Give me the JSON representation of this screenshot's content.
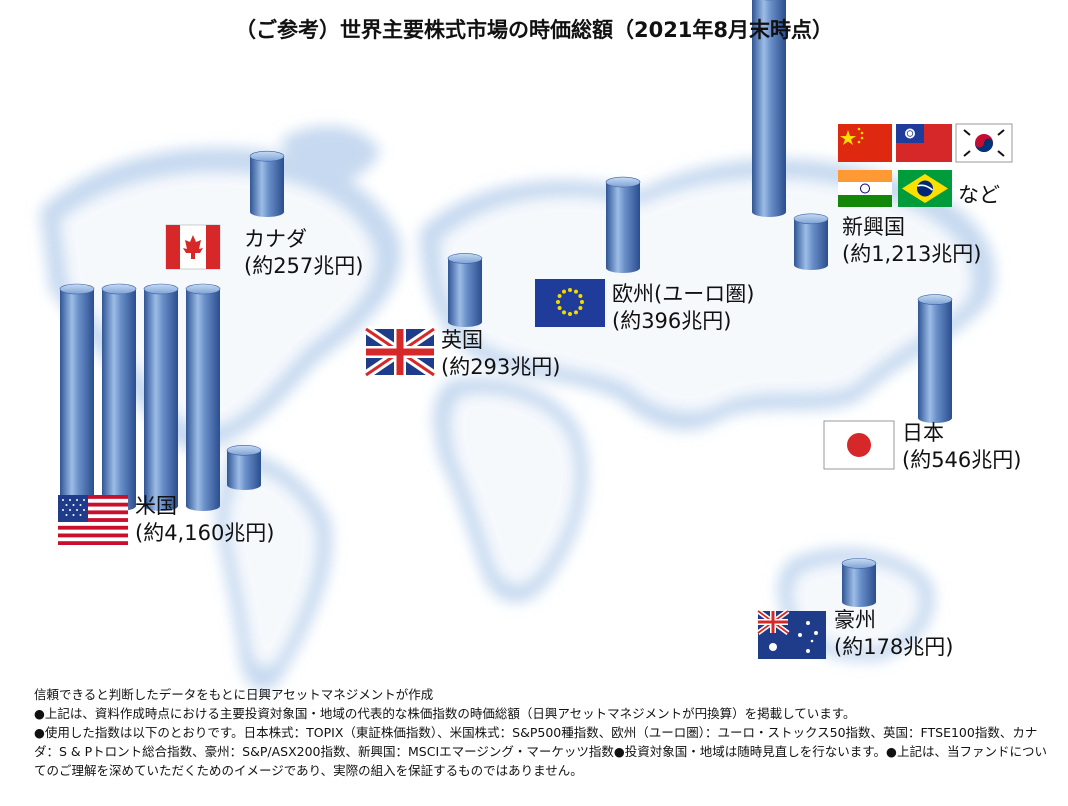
{
  "title": "（ご参考）世界主要株式市場の時価総額（2021年8月末時点）",
  "chart_data": {
    "type": "bar",
    "unit": "兆円",
    "categories": [
      "米国",
      "新興国",
      "日本",
      "欧州（ユーロ圏）",
      "英国",
      "カナダ",
      "豪州"
    ],
    "values": [
      4160,
      1213,
      546,
      396,
      293,
      257,
      178
    ],
    "labels": [
      "(約4,160兆円)",
      "(約1,213兆円)",
      "(約546兆円)",
      "(約396兆円)",
      "(約293兆円)",
      "(約257兆円)",
      "(約178兆円)"
    ]
  },
  "markets": {
    "us": {
      "name": "米国",
      "value": "(約4,160兆円)"
    },
    "canada": {
      "name": "カナダ",
      "value": "(約257兆円)"
    },
    "uk": {
      "name": "英国",
      "value": "(約293兆円)"
    },
    "euro": {
      "name": "欧州(ユーロ圏)",
      "value": "(約396兆円)"
    },
    "emerging": {
      "name": "新興国",
      "value": "(約1,213兆円)",
      "etc": "など"
    },
    "japan": {
      "name": "日本",
      "value": "(約546兆円)"
    },
    "australia": {
      "name": "豪州",
      "value": "(約178兆円)"
    }
  },
  "notes": [
    "信頼できると判断したデータをもとに日興アセットマネジメントが作成",
    "●上記は、資料作成時点における主要投資対象国・地域の代表的な株価指数の時価総額（日興アセットマネジメントが円換算）を掲載しています。",
    "●使用した指数は以下のとおりです。日本株式：TOPIX（東証株価指数）、米国株式：S&P500種指数、欧州（ユーロ圏）：ユーロ・ストックス50指数、英国：FTSE100指数、カナダ：S & Pトロント総合指数、豪州：S&P/ASX200指数、新興国：MSCIエマージング・マーケッツ指数●投資対象国・地域は随時見直しを行ないます。●上記は、当ファンドについてのご理解を深めていただくためのイメージであり、実際の組入を保証するものではありません。"
  ],
  "colors": {
    "cylinder_dark": "#3a5fa0",
    "cylinder_light": "#9fc0e8",
    "map_fill": "#ffffff",
    "map_glow": "#cfe0f3"
  }
}
